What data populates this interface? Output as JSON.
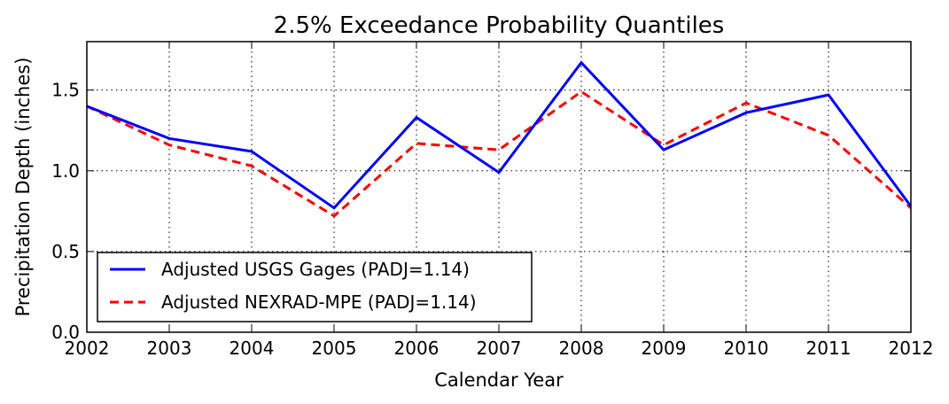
{
  "chart_data": {
    "type": "line",
    "title": "2.5% Exceedance Probability Quantiles",
    "xlabel": "Calendar Year",
    "ylabel": "Precipitation Depth (inches)",
    "x": [
      2002,
      2003,
      2004,
      2005,
      2006,
      2007,
      2008,
      2009,
      2010,
      2011,
      2012
    ],
    "xticks": [
      "2002",
      "2003",
      "2004",
      "2005",
      "2006",
      "2007",
      "2008",
      "2009",
      "2010",
      "2011",
      "2012"
    ],
    "yticks": [
      "0.0",
      "0.5",
      "1.0",
      "1.5"
    ],
    "ytick_values": [
      0.0,
      0.5,
      1.0,
      1.5
    ],
    "xlim": [
      2002,
      2012
    ],
    "ylim": [
      0.0,
      1.8
    ],
    "grid": true,
    "legend_position": "lower-left",
    "series": [
      {
        "name": "Adjusted USGS Gages (PADJ=1.14)",
        "color": "#0000ff",
        "style": "solid",
        "values": [
          1.4,
          1.2,
          1.12,
          0.77,
          1.33,
          0.99,
          1.67,
          1.13,
          1.36,
          1.47,
          0.78
        ]
      },
      {
        "name": "Adjusted NEXRAD-MPE (PADJ=1.14)",
        "color": "#ff0000",
        "style": "dashed",
        "values": [
          1.4,
          1.16,
          1.03,
          0.72,
          1.17,
          1.13,
          1.49,
          1.16,
          1.42,
          1.22,
          0.77
        ]
      }
    ]
  }
}
